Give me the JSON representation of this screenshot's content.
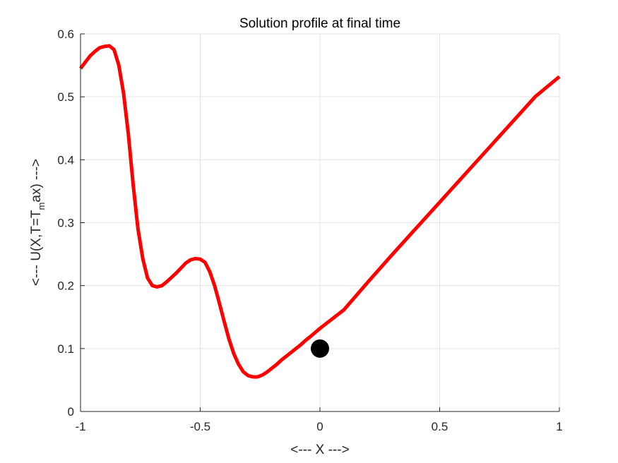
{
  "chart_data": {
    "type": "line",
    "title": "Solution profile at final time",
    "xlabel": "<--- X --->",
    "ylabel": {
      "before": "<--- U(X,T=T",
      "subscript": "m",
      "after": "ax) --->"
    },
    "xlim": [
      -1,
      1
    ],
    "ylim": [
      0,
      0.6
    ],
    "xticks": [
      -1,
      -0.5,
      0,
      0.5,
      1
    ],
    "xtick_labels": [
      "-1",
      "-0.5",
      "0",
      "0.5",
      "1"
    ],
    "yticks": [
      0,
      0.1,
      0.2,
      0.3,
      0.4,
      0.5,
      0.6
    ],
    "ytick_labels": [
      "0",
      "0.1",
      "0.2",
      "0.3",
      "0.4",
      "0.5",
      "0.6"
    ],
    "grid": true,
    "series": [
      {
        "color": "#ff0000",
        "x": [
          -1,
          -0.98,
          -0.96,
          -0.94,
          -0.92,
          -0.9,
          -0.88,
          -0.86,
          -0.84,
          -0.82,
          -0.8,
          -0.78,
          -0.76,
          -0.74,
          -0.72,
          -0.7,
          -0.68,
          -0.66,
          -0.64,
          -0.62,
          -0.6,
          -0.58,
          -0.56,
          -0.54,
          -0.52,
          -0.5,
          -0.48,
          -0.46,
          -0.44,
          -0.42,
          -0.4,
          -0.38,
          -0.36,
          -0.34,
          -0.32,
          -0.3,
          -0.28,
          -0.26,
          -0.24,
          -0.22,
          -0.2,
          -0.18,
          -0.16,
          -0.14,
          -0.12,
          -0.1,
          -0.08,
          -0.06,
          -0.04,
          -0.02,
          0,
          0.1,
          0.2,
          0.3,
          0.4,
          0.5,
          0.6,
          0.7,
          0.8,
          0.9,
          1
        ],
        "y": [
          0.545,
          0.555,
          0.565,
          0.572,
          0.578,
          0.58,
          0.581,
          0.575,
          0.55,
          0.505,
          0.44,
          0.36,
          0.29,
          0.243,
          0.212,
          0.2,
          0.198,
          0.2,
          0.206,
          0.213,
          0.22,
          0.228,
          0.236,
          0.241,
          0.243,
          0.242,
          0.237,
          0.222,
          0.2,
          0.172,
          0.143,
          0.115,
          0.092,
          0.075,
          0.063,
          0.057,
          0.055,
          0.055,
          0.058,
          0.063,
          0.069,
          0.075,
          0.082,
          0.088,
          0.094,
          0.1,
          0.106,
          0.113,
          0.119,
          0.1255,
          0.132,
          0.1615,
          0.2055,
          0.2485,
          0.2905,
          0.3325,
          0.3745,
          0.4165,
          0.4585,
          0.5005,
          0.532
        ]
      }
    ],
    "marker": {
      "x": 0,
      "y": 0.1,
      "color": "#000000"
    }
  }
}
